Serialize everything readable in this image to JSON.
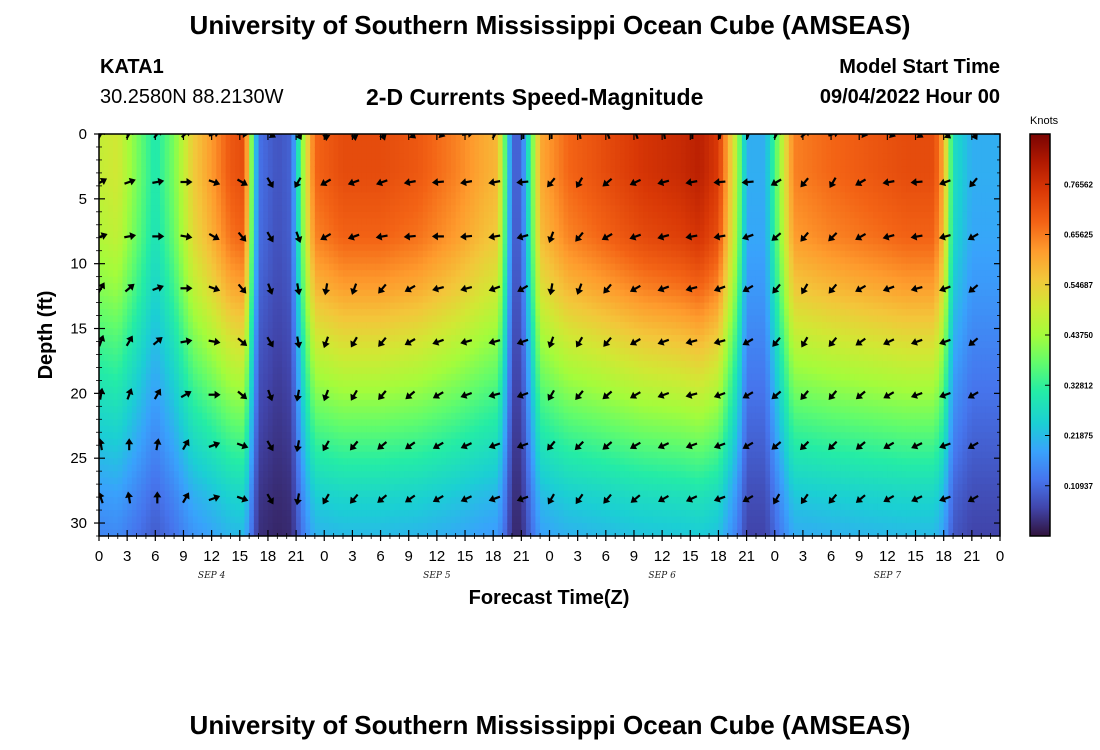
{
  "header": {
    "title": "University of Southern Mississippi Ocean Cube (AMSEAS)",
    "station": "KATA1",
    "coords": "30.2580N  88.2130W",
    "subtitle": "2-D Currents Speed-Magnitude",
    "start_label": "Model Start Time",
    "start_value": "09/04/2022 Hour 00"
  },
  "footer": {
    "title": "University of Southern Mississippi Ocean Cube (AMSEAS)"
  },
  "chart_data": {
    "type": "heatmap",
    "title": "2-D Currents Speed-Magnitude",
    "xlabel": "Forecast Time(Z)",
    "ylabel": "Depth (ft)",
    "xlim": [
      0,
      96
    ],
    "ylim": [
      0,
      31
    ],
    "x_tick_values": [
      0,
      3,
      6,
      9,
      12,
      15,
      18,
      21,
      24,
      27,
      30,
      33,
      36,
      39,
      42,
      45,
      48,
      51,
      54,
      57,
      60,
      63,
      66,
      69,
      72,
      75,
      78,
      81,
      84,
      87,
      90,
      93,
      96
    ],
    "x_tick_labels": [
      "0",
      "3",
      "6",
      "9",
      "12",
      "15",
      "18",
      "21",
      "0",
      "3",
      "6",
      "9",
      "12",
      "15",
      "18",
      "21",
      "0",
      "3",
      "6",
      "9",
      "12",
      "15",
      "18",
      "21",
      "0",
      "3",
      "6",
      "9",
      "12",
      "15",
      "18",
      "21",
      "0"
    ],
    "y_ticks": [
      0,
      5,
      10,
      15,
      20,
      25,
      30
    ],
    "y_tick_labels": [
      "0",
      "5",
      "10",
      "15",
      "20",
      "25",
      "30"
    ],
    "date_labels": [
      {
        "label": "SEP 4",
        "x": 12
      },
      {
        "label": "SEP 5",
        "x": 36
      },
      {
        "label": "SEP 6",
        "x": 60
      },
      {
        "label": "SEP 7",
        "x": 84
      }
    ],
    "colorbar": {
      "title": "Knots",
      "range": [
        0,
        0.875
      ],
      "ticks": [
        "0.76562",
        "0.65625",
        "0.54687",
        "0.43750",
        "0.32812",
        "0.21875",
        "0.10937"
      ],
      "tick_values": [
        0.765625,
        0.65625,
        0.546875,
        0.4375,
        0.328125,
        0.21875,
        0.109375
      ]
    },
    "depth_profile": [
      [
        0,
        1.0
      ],
      [
        3,
        1.0
      ],
      [
        8,
        0.95
      ],
      [
        12,
        0.85
      ],
      [
        16,
        0.72
      ],
      [
        20,
        0.6
      ],
      [
        24,
        0.48
      ],
      [
        28,
        0.36
      ],
      [
        31,
        0.3
      ]
    ],
    "surface_speed_knots": [
      [
        0,
        0.48
      ],
      [
        2,
        0.5
      ],
      [
        4,
        0.4
      ],
      [
        6,
        0.3
      ],
      [
        8,
        0.4
      ],
      [
        10,
        0.55
      ],
      [
        12,
        0.62
      ],
      [
        14,
        0.7
      ],
      [
        15.5,
        0.72
      ],
      [
        16.5,
        0.3
      ],
      [
        17,
        0.12
      ],
      [
        19,
        0.08
      ],
      [
        20.5,
        0.1
      ],
      [
        22,
        0.5
      ],
      [
        23,
        0.68
      ],
      [
        26,
        0.72
      ],
      [
        30,
        0.72
      ],
      [
        34,
        0.7
      ],
      [
        38,
        0.65
      ],
      [
        41,
        0.6
      ],
      [
        42.5,
        0.58
      ],
      [
        43.5,
        0.3
      ],
      [
        44,
        0.1
      ],
      [
        45,
        0.1
      ],
      [
        46,
        0.35
      ],
      [
        47,
        0.6
      ],
      [
        50,
        0.68
      ],
      [
        54,
        0.72
      ],
      [
        58,
        0.76
      ],
      [
        62,
        0.78
      ],
      [
        64,
        0.8
      ],
      [
        66,
        0.75
      ],
      [
        68,
        0.45
      ],
      [
        69,
        0.2
      ],
      [
        71,
        0.2
      ],
      [
        72,
        0.35
      ],
      [
        74,
        0.65
      ],
      [
        78,
        0.68
      ],
      [
        82,
        0.7
      ],
      [
        86,
        0.72
      ],
      [
        89,
        0.72
      ],
      [
        90,
        0.6
      ],
      [
        91,
        0.28
      ],
      [
        93,
        0.2
      ],
      [
        96,
        0.2
      ]
    ],
    "vector_rows_depth_ft": [
      0,
      3.7,
      7.9,
      11.9,
      16.0,
      20.1,
      24.0,
      28.1
    ],
    "vector_cols_hours": [
      0,
      3,
      6,
      9,
      12,
      15,
      18,
      21,
      24,
      27,
      30,
      33,
      36,
      39,
      42,
      45,
      48,
      51,
      54,
      57,
      60,
      63,
      66,
      69,
      72,
      75,
      78,
      81,
      84,
      87,
      90,
      93
    ],
    "vector_angles_deg": [
      [
        -60,
        -60,
        -50,
        -40,
        -20,
        0,
        30,
        60,
        90,
        80,
        70,
        40,
        20,
        -10,
        -60,
        -90,
        -90,
        -100,
        -110,
        -110,
        -100,
        -90,
        -80,
        -70,
        -60,
        -40,
        -20,
        10,
        20,
        30,
        40,
        60
      ],
      [
        -30,
        -20,
        -10,
        0,
        20,
        30,
        60,
        120,
        150,
        160,
        160,
        170,
        175,
        170,
        170,
        175,
        130,
        120,
        140,
        155,
        165,
        170,
        175,
        175,
        150,
        130,
        120,
        150,
        170,
        175,
        160,
        130
      ],
      [
        -20,
        -10,
        0,
        10,
        30,
        50,
        60,
        70,
        150,
        160,
        170,
        175,
        180,
        175,
        170,
        165,
        110,
        130,
        150,
        160,
        165,
        170,
        170,
        160,
        140,
        130,
        135,
        150,
        165,
        170,
        165,
        150
      ],
      [
        -60,
        -40,
        -20,
        0,
        20,
        50,
        70,
        80,
        100,
        110,
        130,
        150,
        165,
        165,
        160,
        150,
        100,
        110,
        130,
        150,
        160,
        165,
        160,
        150,
        130,
        120,
        130,
        150,
        160,
        165,
        160,
        140
      ],
      [
        -70,
        -60,
        -40,
        -10,
        10,
        40,
        60,
        80,
        110,
        120,
        130,
        150,
        160,
        165,
        165,
        160,
        110,
        120,
        130,
        150,
        160,
        165,
        165,
        150,
        130,
        120,
        130,
        145,
        155,
        160,
        160,
        140
      ],
      [
        -80,
        -70,
        -60,
        -30,
        0,
        40,
        70,
        100,
        110,
        120,
        130,
        140,
        150,
        160,
        165,
        160,
        120,
        130,
        140,
        150,
        160,
        165,
        160,
        150,
        140,
        130,
        130,
        140,
        150,
        160,
        160,
        150
      ],
      [
        -100,
        -90,
        -80,
        -60,
        -20,
        20,
        60,
        100,
        120,
        130,
        140,
        145,
        150,
        155,
        160,
        160,
        130,
        135,
        140,
        150,
        155,
        160,
        160,
        150,
        140,
        135,
        135,
        140,
        150,
        155,
        160,
        150
      ],
      [
        -110,
        -100,
        -90,
        -60,
        -20,
        20,
        60,
        100,
        120,
        130,
        140,
        145,
        150,
        155,
        160,
        160,
        120,
        125,
        130,
        140,
        150,
        155,
        160,
        150,
        120,
        125,
        130,
        140,
        150,
        155,
        160,
        150
      ]
    ]
  }
}
